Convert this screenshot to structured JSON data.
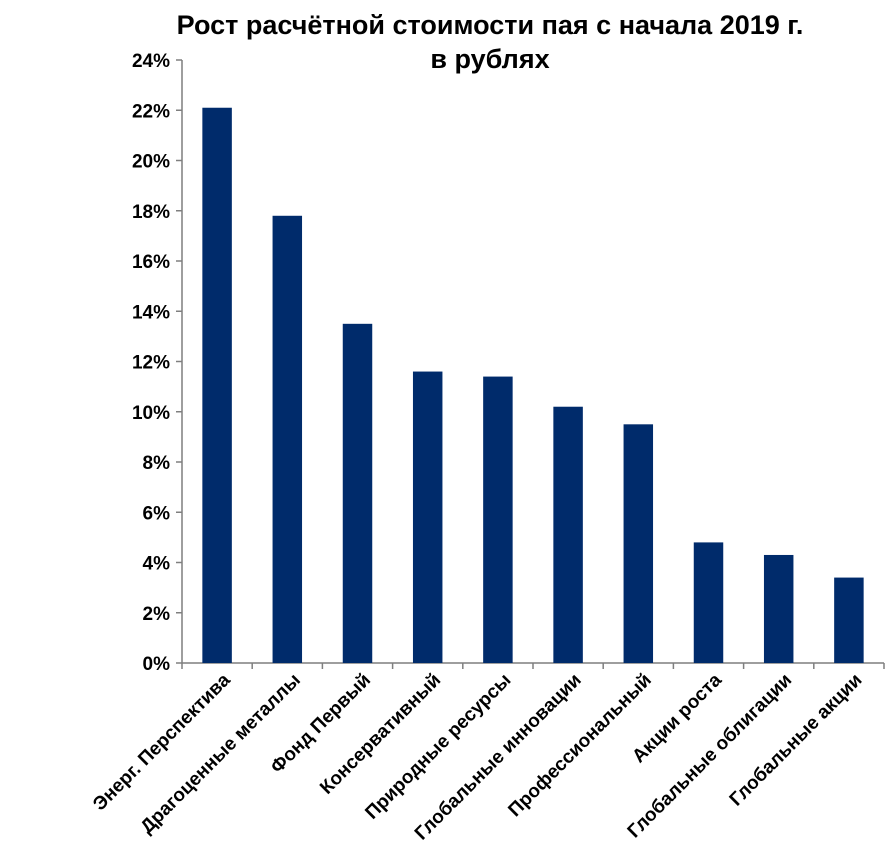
{
  "chart_data": {
    "type": "bar",
    "title_lines": [
      "Рост расчётной стоимости пая с начала 2019 г.",
      "в рублях"
    ],
    "categories": [
      "Энерг. Перспектива",
      "Драгоценные металлы",
      "Фонд Первый",
      "Консервативный",
      "Природные ресурсы",
      "Глобальные инновации",
      "Профессиональный",
      "Акции роста",
      "Глобальные облигации",
      "Глобальные акции"
    ],
    "values": [
      22.1,
      17.8,
      13.5,
      11.6,
      11.4,
      10.2,
      9.5,
      4.8,
      4.3,
      3.4
    ],
    "ylim": [
      0,
      24
    ],
    "ytick_step": 2,
    "ytick_labels": [
      "0%",
      "2%",
      "4%",
      "6%",
      "8%",
      "10%",
      "12%",
      "14%",
      "16%",
      "18%",
      "20%",
      "22%",
      "24%"
    ],
    "bar_color": "#002b6b",
    "axis_color": "#7f7f7f",
    "grid": false,
    "legend": "none"
  }
}
